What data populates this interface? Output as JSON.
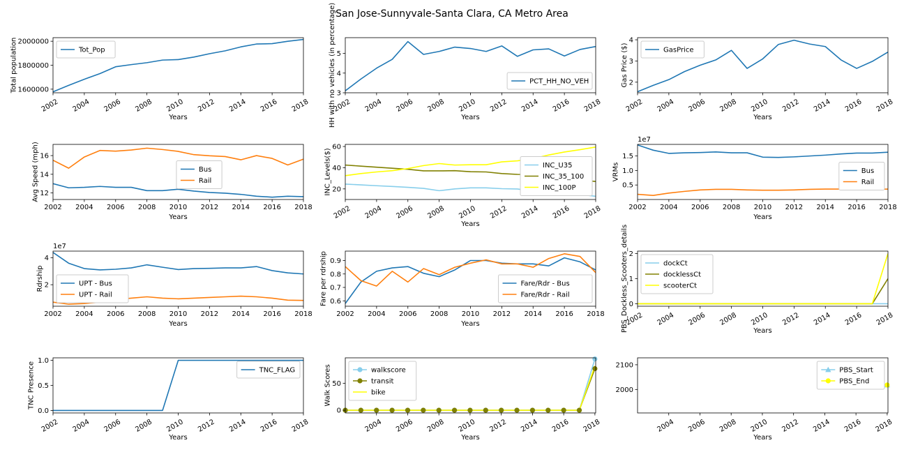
{
  "figure_title": "San Jose-Sunnyvale-Santa Clara, CA Metro Area",
  "colors": {
    "blue": "#1f77b4",
    "orange": "#ff7f0e",
    "skyblue": "#87ceeb",
    "olive": "#808000",
    "yellow": "#ffff00"
  },
  "chart_data": [
    {
      "type": "line",
      "ylabel": "Total population",
      "xlabel": "Years",
      "xlim": [
        2002,
        2018
      ],
      "ylim": [
        1570000,
        2030000
      ],
      "xticks": [
        "2002",
        "2004",
        "2006",
        "2008",
        "2010",
        "2012",
        "2014",
        "2016",
        "2018"
      ],
      "xtick_rotate": true,
      "yticks": [
        "1600000",
        "1800000",
        "2000000"
      ],
      "ytick_values": [
        1600000,
        1800000,
        2000000
      ],
      "legend": "upper left",
      "x": [
        2002,
        2003,
        2004,
        2005,
        2006,
        2007,
        2008,
        2009,
        2010,
        2011,
        2012,
        2013,
        2014,
        2015,
        2016,
        2017,
        2018
      ],
      "series": [
        {
          "name": "Tot_Pop",
          "color": "#1f77b4",
          "values": [
            1578000,
            1632000,
            1683000,
            1730000,
            1787000,
            1805000,
            1821000,
            1843000,
            1847000,
            1868000,
            1896000,
            1920000,
            1953000,
            1977000,
            1980000,
            2000000,
            2015000
          ]
        }
      ]
    },
    {
      "type": "line",
      "ylabel": "HH with no vehicles (in percentage)",
      "xlabel": "Years",
      "xlim": [
        2002,
        2018
      ],
      "ylim": [
        3.0,
        5.8
      ],
      "xticks": [
        "2002",
        "2004",
        "2006",
        "2008",
        "2010",
        "2012",
        "2014",
        "2016",
        "2018"
      ],
      "xtick_rotate": true,
      "yticks": [
        "3",
        "4",
        "5"
      ],
      "ytick_values": [
        3,
        4,
        5
      ],
      "legend": "lower right",
      "x": [
        2002,
        2003,
        2004,
        2005,
        2006,
        2007,
        2008,
        2009,
        2010,
        2011,
        2012,
        2013,
        2014,
        2015,
        2016,
        2017,
        2018
      ],
      "series": [
        {
          "name": "PCT_HH_NO_VEH",
          "color": "#1f77b4",
          "values": [
            3.1,
            3.7,
            4.25,
            4.7,
            5.6,
            4.95,
            5.1,
            5.32,
            5.25,
            5.1,
            5.38,
            4.85,
            5.18,
            5.23,
            4.87,
            5.2,
            5.35
          ]
        }
      ]
    },
    {
      "type": "line",
      "ylabel": "Gas Price ($)",
      "xlabel": "Years",
      "xlim": [
        2002,
        2018
      ],
      "ylim": [
        1.5,
        4.1
      ],
      "xticks": [
        "2002",
        "2004",
        "2006",
        "2008",
        "2010",
        "2012",
        "2014",
        "2016",
        "2018"
      ],
      "xtick_rotate": true,
      "yticks": [
        "2",
        "3",
        "4"
      ],
      "ytick_values": [
        2,
        3,
        4
      ],
      "legend": "upper left",
      "x": [
        2002,
        2003,
        2004,
        2005,
        2006,
        2007,
        2008,
        2009,
        2010,
        2011,
        2012,
        2013,
        2014,
        2015,
        2016,
        2017,
        2018
      ],
      "series": [
        {
          "name": "GasPrice",
          "color": "#1f77b4",
          "values": [
            1.55,
            1.85,
            2.12,
            2.5,
            2.8,
            3.05,
            3.5,
            2.65,
            3.1,
            3.78,
            3.98,
            3.8,
            3.68,
            3.05,
            2.65,
            2.98,
            3.42
          ]
        }
      ]
    },
    {
      "type": "line",
      "ylabel": "Avg Speed (mph)",
      "xlabel": "Years",
      "xlim": [
        2002,
        2018
      ],
      "ylim": [
        11.3,
        17.2
      ],
      "xticks": [
        "2002",
        "2004",
        "2006",
        "2008",
        "2010",
        "2012",
        "2014",
        "2016",
        "2018"
      ],
      "xtick_rotate": false,
      "yticks": [
        "12",
        "14",
        "16"
      ],
      "ytick_values": [
        12,
        14,
        16
      ],
      "legend": "center",
      "x": [
        2002,
        2003,
        2004,
        2005,
        2006,
        2007,
        2008,
        2009,
        2010,
        2011,
        2012,
        2013,
        2014,
        2015,
        2016,
        2017,
        2018
      ],
      "series": [
        {
          "name": "Bus",
          "color": "#1f77b4",
          "values": [
            13.0,
            12.55,
            12.6,
            12.7,
            12.6,
            12.6,
            12.25,
            12.25,
            12.4,
            12.2,
            12.05,
            11.98,
            11.85,
            11.65,
            11.55,
            11.65,
            11.6
          ]
        },
        {
          "name": "Rail",
          "color": "#ff7f0e",
          "values": [
            15.5,
            14.65,
            15.85,
            16.55,
            16.48,
            16.6,
            16.8,
            16.65,
            16.45,
            16.1,
            15.98,
            15.9,
            15.55,
            16.0,
            15.7,
            15.0,
            15.62
          ]
        }
      ]
    },
    {
      "type": "line",
      "ylabel": "INC_Levels($)",
      "xlabel": "Years",
      "xlim": [
        2002,
        2018
      ],
      "ylim": [
        10,
        62
      ],
      "xticks": [
        "2002",
        "2004",
        "2006",
        "2008",
        "2010",
        "2012",
        "2014",
        "2016",
        "2018"
      ],
      "xtick_rotate": true,
      "yticks": [
        "20",
        "40",
        "60"
      ],
      "ytick_values": [
        20,
        40,
        60
      ],
      "legend": "center right",
      "x": [
        2002,
        2003,
        2004,
        2005,
        2006,
        2007,
        2008,
        2009,
        2010,
        2011,
        2012,
        2013,
        2014,
        2015,
        2016,
        2017,
        2018
      ],
      "series": [
        {
          "name": "INC_U35",
          "color": "#87ceeb",
          "values": [
            24.5,
            23.8,
            23,
            22.3,
            21.5,
            20.5,
            18.3,
            20,
            21,
            21,
            20.2,
            19.9,
            17.8,
            17.5,
            16.5,
            14.8,
            13
          ]
        },
        {
          "name": "INC_35_100",
          "color": "#808000",
          "values": [
            42.5,
            41.5,
            40.5,
            39.5,
            38.5,
            37,
            37,
            37.2,
            36.2,
            36,
            34.5,
            33.7,
            33.5,
            32,
            30,
            28.5,
            27
          ]
        },
        {
          "name": "INC_100P",
          "color": "#ffff00",
          "values": [
            32.5,
            34.5,
            36,
            37.2,
            39.2,
            42,
            43.9,
            42.5,
            42.8,
            42.8,
            45.5,
            46.5,
            48.5,
            52,
            54.8,
            57,
            59.5
          ]
        }
      ]
    },
    {
      "type": "line",
      "ylabel": "VRMs",
      "xlabel": "Years",
      "xlim": [
        2002,
        2018
      ],
      "ylim": [
        0,
        19000000
      ],
      "exponent_label": "1e7",
      "xticks": [
        "2002",
        "2004",
        "2006",
        "2008",
        "2010",
        "2012",
        "2014",
        "2016",
        "2018"
      ],
      "xtick_rotate": false,
      "yticks": [
        "0.5",
        "1.0",
        "1.5"
      ],
      "ytick_values": [
        5000000,
        10000000,
        15000000
      ],
      "legend": "center right",
      "x": [
        2002,
        2003,
        2004,
        2005,
        2006,
        2007,
        2008,
        2009,
        2010,
        2011,
        2012,
        2013,
        2014,
        2015,
        2016,
        2017,
        2018
      ],
      "series": [
        {
          "name": "Bus",
          "color": "#1f77b4",
          "values": [
            18800000,
            17000000,
            15900000,
            16100000,
            16200000,
            16400000,
            16100000,
            16100000,
            14600000,
            14500000,
            14700000,
            15000000,
            15300000,
            15700000,
            16000000,
            16000000,
            16300000
          ]
        },
        {
          "name": "Rail",
          "color": "#ff7f0e",
          "values": [
            1800000,
            1400000,
            2200000,
            2800000,
            3300000,
            3500000,
            3500000,
            3300000,
            3200000,
            3200000,
            3300000,
            3500000,
            3600000,
            3600000,
            3500000,
            3400000,
            3600000
          ]
        }
      ]
    },
    {
      "type": "line",
      "ylabel": "Rdrship",
      "xlabel": "Years",
      "xlim": [
        2002,
        2018
      ],
      "ylim": [
        4000000,
        45000000
      ],
      "exponent_label": "1e7",
      "xticks": [
        "2002",
        "2004",
        "2006",
        "2008",
        "2010",
        "2012",
        "2014",
        "2016",
        "2018"
      ],
      "xtick_rotate": false,
      "yticks": [
        "2",
        "4"
      ],
      "ytick_values": [
        20000000,
        40000000
      ],
      "legend": "lower left",
      "x": [
        2002,
        2003,
        2004,
        2005,
        2006,
        2007,
        2008,
        2009,
        2010,
        2011,
        2012,
        2013,
        2014,
        2015,
        2016,
        2017,
        2018
      ],
      "series": [
        {
          "name": "UPT - Bus",
          "color": "#1f77b4",
          "values": [
            44000000,
            36000000,
            32000000,
            31000000,
            31500000,
            32500000,
            34800000,
            33000000,
            31300000,
            32000000,
            32200000,
            32500000,
            32500000,
            33500000,
            30500000,
            28800000,
            28000000
          ]
        },
        {
          "name": "UPT - Rail",
          "color": "#ff7f0e",
          "values": [
            7000000,
            5500000,
            6000000,
            7000000,
            9000000,
            10000000,
            11000000,
            10000000,
            9500000,
            10000000,
            10500000,
            11000000,
            11500000,
            11000000,
            10000000,
            8500000,
            8300000
          ]
        }
      ]
    },
    {
      "type": "line",
      "ylabel": "Fare per rdrship",
      "xlabel": "Years",
      "xlim": [
        2002,
        2018
      ],
      "ylim": [
        0.56,
        0.97
      ],
      "xticks": [
        "2002",
        "2004",
        "2006",
        "2008",
        "2010",
        "2012",
        "2014",
        "2016",
        "2018"
      ],
      "xtick_rotate": false,
      "yticks": [
        "0.6",
        "0.7",
        "0.8",
        "0.9"
      ],
      "ytick_values": [
        0.6,
        0.7,
        0.8,
        0.9
      ],
      "legend": "lower right",
      "x": [
        2002,
        2003,
        2004,
        2005,
        2006,
        2007,
        2008,
        2009,
        2010,
        2011,
        2012,
        2013,
        2014,
        2015,
        2016,
        2017,
        2018
      ],
      "series": [
        {
          "name": "Fare/Rdr - Bus",
          "color": "#1f77b4",
          "values": [
            0.58,
            0.74,
            0.82,
            0.845,
            0.855,
            0.805,
            0.78,
            0.83,
            0.9,
            0.9,
            0.88,
            0.875,
            0.875,
            0.86,
            0.92,
            0.89,
            0.83
          ]
        },
        {
          "name": "Fare/Rdr - Rail",
          "color": "#ff7f0e",
          "values": [
            0.855,
            0.75,
            0.71,
            0.82,
            0.74,
            0.84,
            0.795,
            0.85,
            0.88,
            0.905,
            0.875,
            0.875,
            0.85,
            0.915,
            0.95,
            0.93,
            0.81
          ]
        }
      ]
    },
    {
      "type": "line",
      "ylabel": "PBS_Dockless_Scooters_details",
      "xlabel": "Years",
      "xlim": [
        2002,
        2018
      ],
      "ylim": [
        -0.1,
        2.1
      ],
      "xticks": [
        "2002",
        "2004",
        "2006",
        "2008",
        "2010",
        "2012",
        "2014",
        "2016",
        "2018"
      ],
      "xtick_rotate": true,
      "yticks": [
        "0",
        "1",
        "2"
      ],
      "ytick_values": [
        0,
        1,
        2
      ],
      "legend": "upper left",
      "x": [
        2002,
        2003,
        2004,
        2005,
        2006,
        2007,
        2008,
        2009,
        2010,
        2011,
        2012,
        2013,
        2014,
        2015,
        2016,
        2017,
        2018
      ],
      "series": [
        {
          "name": "dockCt",
          "color": "#87ceeb",
          "values": [
            0,
            0,
            0,
            0,
            0,
            0,
            0,
            0,
            0,
            0,
            0,
            0,
            0,
            0,
            0,
            0,
            0
          ]
        },
        {
          "name": "docklessCt",
          "color": "#808000",
          "values": [
            0,
            0,
            0,
            0,
            0,
            0,
            0,
            0,
            0,
            0,
            0,
            0,
            0,
            0,
            0,
            0,
            1
          ]
        },
        {
          "name": "scooterCt",
          "color": "#ffff00",
          "values": [
            0,
            0,
            0,
            0,
            0,
            0,
            0,
            0,
            0,
            0,
            0,
            0,
            0,
            0,
            0,
            0,
            2
          ]
        }
      ]
    },
    {
      "type": "line",
      "ylabel": "TNC Presence",
      "xlabel": "Years",
      "xlim": [
        2002,
        2018
      ],
      "ylim": [
        -0.05,
        1.05
      ],
      "xticks": [
        "2002",
        "2004",
        "2006",
        "2008",
        "2010",
        "2012",
        "2014",
        "2016",
        "2018"
      ],
      "xtick_rotate": true,
      "yticks": [
        "0.0",
        "0.5",
        "1.0"
      ],
      "ytick_values": [
        0,
        0.5,
        1
      ],
      "legend": "upper right",
      "x": [
        2002,
        2003,
        2004,
        2005,
        2006,
        2007,
        2008,
        2009,
        2010,
        2011,
        2012,
        2013,
        2014,
        2015,
        2016,
        2017,
        2018
      ],
      "series": [
        {
          "name": "TNC_FLAG",
          "color": "#1f77b4",
          "values": [
            0,
            0,
            0,
            0,
            0,
            0,
            0,
            0,
            1,
            1,
            1,
            1,
            1,
            1,
            1,
            1,
            1
          ]
        }
      ]
    },
    {
      "type": "line",
      "ylabel": "Walk Scores",
      "xlabel": "Years",
      "xlim": [
        2002,
        2018.05
      ],
      "ylim": [
        -5,
        97
      ],
      "xticks": [
        "2004",
        "2006",
        "2008",
        "2010",
        "2012",
        "2014",
        "2016",
        "2018"
      ],
      "xtick_rotate": true,
      "yticks": [
        "0",
        "50"
      ],
      "ytick_values": [
        0,
        50
      ],
      "legend": "upper left",
      "x": [
        2002,
        2003,
        2004,
        2005,
        2006,
        2007,
        2008,
        2009,
        2010,
        2011,
        2012,
        2013,
        2014,
        2015,
        2016,
        2017,
        2018
      ],
      "series": [
        {
          "name": "walkscore",
          "color": "#87ceeb",
          "marker": "circle",
          "values": [
            0,
            0,
            0,
            0,
            0,
            0,
            0,
            0,
            0,
            0,
            0,
            0,
            0,
            0,
            0,
            0,
            95
          ]
        },
        {
          "name": "transit",
          "color": "#808000",
          "marker": "circle",
          "values": [
            0,
            0,
            0,
            0,
            0,
            0,
            0,
            0,
            0,
            0,
            0,
            0,
            0,
            0,
            0,
            0,
            77
          ]
        },
        {
          "name": "bike",
          "color": "#ffff00",
          "values": [
            0,
            0,
            0,
            0,
            0,
            0,
            0,
            0,
            0,
            0,
            0,
            0,
            0,
            0,
            0,
            0,
            82
          ]
        }
      ]
    },
    {
      "type": "line",
      "ylabel": "",
      "xlabel": "Years",
      "xlim": [
        2002,
        2018.05
      ],
      "ylim": [
        1905,
        2128
      ],
      "xticks": [
        "2004",
        "2006",
        "2008",
        "2010",
        "2012",
        "2014",
        "2016",
        "2018"
      ],
      "xtick_rotate": true,
      "yticks": [
        "2000",
        "2100"
      ],
      "ytick_values": [
        2000,
        2100
      ],
      "legend": "upper right",
      "x": [
        2018
      ],
      "series": [
        {
          "name": "PBS_Start",
          "color": "#87ceeb",
          "marker": "triangle",
          "values": [
            2018
          ]
        },
        {
          "name": "PBS_End",
          "color": "#ffff00",
          "marker": "circle",
          "values": [
            2018
          ]
        }
      ]
    }
  ]
}
